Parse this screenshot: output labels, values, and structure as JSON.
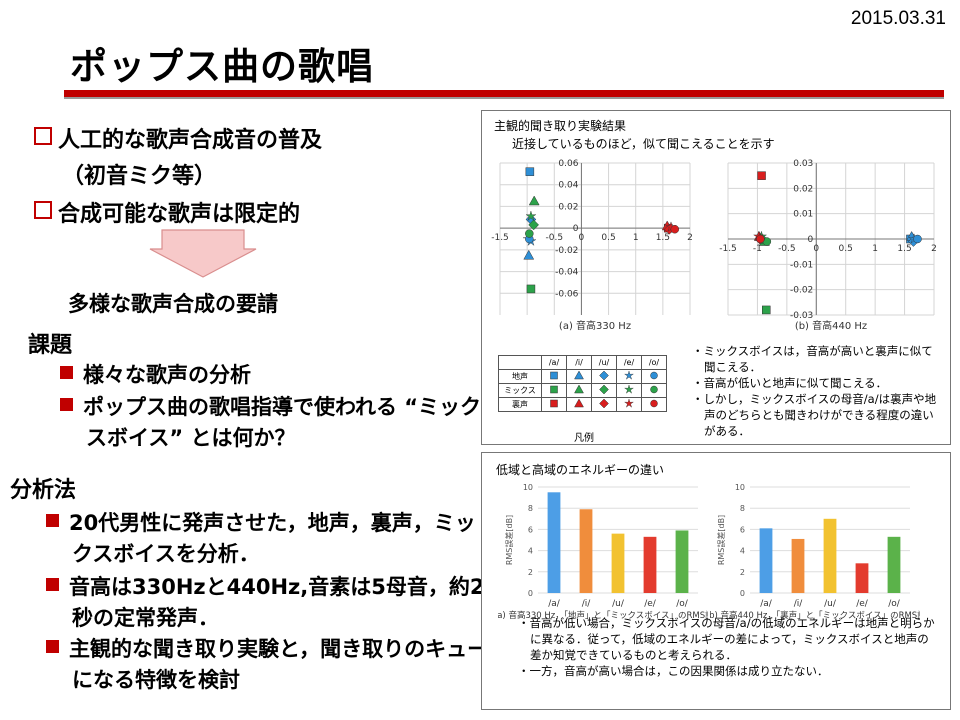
{
  "date": "2015.03.31",
  "title": "ポップス曲の歌唱",
  "left": {
    "b1": "人工的な歌声合成音の普及",
    "b1b": "（初音ミク等）",
    "b2": "合成可能な歌声は限定的",
    "demand": "多様な歌声合成の要請",
    "kadai": "課題",
    "k1": "様々な歌声の分析",
    "k2": "ポップス曲の歌唱指導で使われる “ミックスボイス” とは何か？",
    "method": "分析法",
    "m1": "20代男性に発声させた，地声，裏声，ミックスボイスを分析．",
    "m2": "音高は330Hzと440Hz,音素は5母音，約2秒の定常発声．",
    "m3": "主観的な聞き取り実験と，聞き取りのキューになる特徴を検討"
  },
  "panel1": {
    "title": "主観的聞き取り実験結果",
    "subtitle": "近接しているものほど，似て聞こえることを示す",
    "legend_caption": "凡例",
    "notes": [
      "・ミックスボイスは，音高が高いと裏声に似て聞こえる．",
      "・音高が低いと地声に似て聞こえる．",
      "・しかし，ミックスボイスの母音/a/は裏声や地声のどちらとも聞きわけができる程度の違いがある．"
    ]
  },
  "legend": {
    "vowels": [
      "/a/",
      "/i/",
      "/u/",
      "/e/",
      "/o/"
    ],
    "rows": [
      {
        "name": "地声",
        "color": "#2e8fd6"
      },
      {
        "name": "ミックス",
        "color": "#2ca24a"
      },
      {
        "name": "裏声",
        "color": "#d81e1e"
      }
    ],
    "shapes": [
      "square",
      "triangle",
      "diamond",
      "star",
      "circle"
    ]
  },
  "panel2": {
    "title": "低域と高域のエネルギーの違い",
    "notes": [
      "・音高が低い場合，ミックスボイスの母音/a/の低域のエネルギーは地声と明らかに異なる．従って，低域のエネルギーの差によって，ミックスボイスと地声の差か知覚できているものと考えられる．",
      "・一方，音高が高い場合は，この因果関係は成り立たない．"
    ]
  },
  "chart_data": [
    {
      "type": "scatter",
      "caption": "(a) 音高330 Hz",
      "xlim": [
        -1.5,
        2
      ],
      "ylim": [
        -0.08,
        0.06
      ],
      "xticks": [
        "-1.5",
        "-1",
        "-0.5",
        "0",
        "0.5",
        "1",
        "1.5",
        "2"
      ],
      "yticks": [
        "0.06",
        "0.04",
        "0.02",
        "0",
        "-0.02",
        "-0.04",
        "-0.06"
      ],
      "series": [
        {
          "name": "地声",
          "points": [
            {
              "v": "/a/",
              "x": -0.95,
              "y": 0.052
            },
            {
              "v": "/i/",
              "x": -0.97,
              "y": -0.025
            },
            {
              "v": "/u/",
              "x": -0.93,
              "y": 0.008
            },
            {
              "v": "/e/",
              "x": -0.93,
              "y": -0.012
            },
            {
              "v": "/o/",
              "x": -0.96,
              "y": -0.01
            }
          ]
        },
        {
          "name": "ミックス",
          "points": [
            {
              "v": "/a/",
              "x": -0.93,
              "y": -0.056
            },
            {
              "v": "/i/",
              "x": -0.87,
              "y": 0.025
            },
            {
              "v": "/u/",
              "x": -0.88,
              "y": 0.003
            },
            {
              "v": "/e/",
              "x": -0.93,
              "y": 0.011
            },
            {
              "v": "/o/",
              "x": -0.96,
              "y": -0.005
            }
          ]
        },
        {
          "name": "裏声",
          "points": [
            {
              "v": "/a/",
              "x": 1.6,
              "y": 0.0
            },
            {
              "v": "/i/",
              "x": 1.58,
              "y": 0.002
            },
            {
              "v": "/u/",
              "x": 1.62,
              "y": -0.001
            },
            {
              "v": "/e/",
              "x": 1.65,
              "y": 0.001
            },
            {
              "v": "/o/",
              "x": 1.72,
              "y": -0.001
            }
          ]
        }
      ]
    },
    {
      "type": "scatter",
      "caption": "(b) 音高440 Hz",
      "xlim": [
        -1.5,
        2
      ],
      "ylim": [
        -0.03,
        0.03
      ],
      "xticks": [
        "-1.5",
        "-1",
        "-0.5",
        "0",
        "0.5",
        "1",
        "1.5",
        "2"
      ],
      "yticks": [
        "0.03",
        "0.02",
        "0.01",
        "0",
        "-0.01",
        "-0.02",
        "-0.03"
      ],
      "series": [
        {
          "name": "地声",
          "points": [
            {
              "v": "/a/",
              "x": 1.6,
              "y": 0.0
            },
            {
              "v": "/i/",
              "x": 1.62,
              "y": 0.001
            },
            {
              "v": "/u/",
              "x": 1.65,
              "y": -0.001
            },
            {
              "v": "/e/",
              "x": 1.66,
              "y": 0.0
            },
            {
              "v": "/o/",
              "x": 1.72,
              "y": 0.0
            }
          ]
        },
        {
          "name": "ミックス",
          "points": [
            {
              "v": "/a/",
              "x": -0.85,
              "y": -0.028
            },
            {
              "v": "/i/",
              "x": -0.88,
              "y": -0.001
            },
            {
              "v": "/u/",
              "x": -0.92,
              "y": 0.0
            },
            {
              "v": "/e/",
              "x": -0.93,
              "y": 0.001
            },
            {
              "v": "/o/",
              "x": -0.84,
              "y": -0.001
            }
          ]
        },
        {
          "name": "裏声",
          "points": [
            {
              "v": "/a/",
              "x": -0.93,
              "y": 0.025
            },
            {
              "v": "/i/",
              "x": -0.97,
              "y": 0.001
            },
            {
              "v": "/u/",
              "x": -0.96,
              "y": 0.0
            },
            {
              "v": "/e/",
              "x": -0.98,
              "y": 0.001
            },
            {
              "v": "/o/",
              "x": -0.95,
              "y": 0.0
            }
          ]
        }
      ]
    },
    {
      "type": "bar",
      "caption": "(a) 音高330 Hz，「地声」と「ミックスボイス」のRMS誤差",
      "ylabel": "RMS誤差[dB]",
      "ylim": [
        0,
        10
      ],
      "yticks": [
        "0",
        "2",
        "4",
        "6",
        "8",
        "10"
      ],
      "categories": [
        "/a/",
        "/i/",
        "/u/",
        "/e/",
        "/o/"
      ],
      "values": [
        9.5,
        7.9,
        5.6,
        5.3,
        5.9
      ],
      "colors": [
        "#4d9ee6",
        "#f08d3c",
        "#f2c230",
        "#e33b2e",
        "#5bb24a"
      ]
    },
    {
      "type": "bar",
      "caption": "(b) 音高440 Hz，「裏声」と「ミックスボイス」のRMS誤差",
      "ylabel": "RMS誤差[dB]",
      "ylim": [
        0,
        10
      ],
      "yticks": [
        "0",
        "2",
        "4",
        "6",
        "8",
        "10"
      ],
      "categories": [
        "/a/",
        "/i/",
        "/u/",
        "/e/",
        "/o/"
      ],
      "values": [
        6.1,
        5.1,
        7.0,
        2.8,
        5.3
      ],
      "colors": [
        "#4d9ee6",
        "#f08d3c",
        "#f2c230",
        "#e33b2e",
        "#5bb24a"
      ]
    }
  ]
}
